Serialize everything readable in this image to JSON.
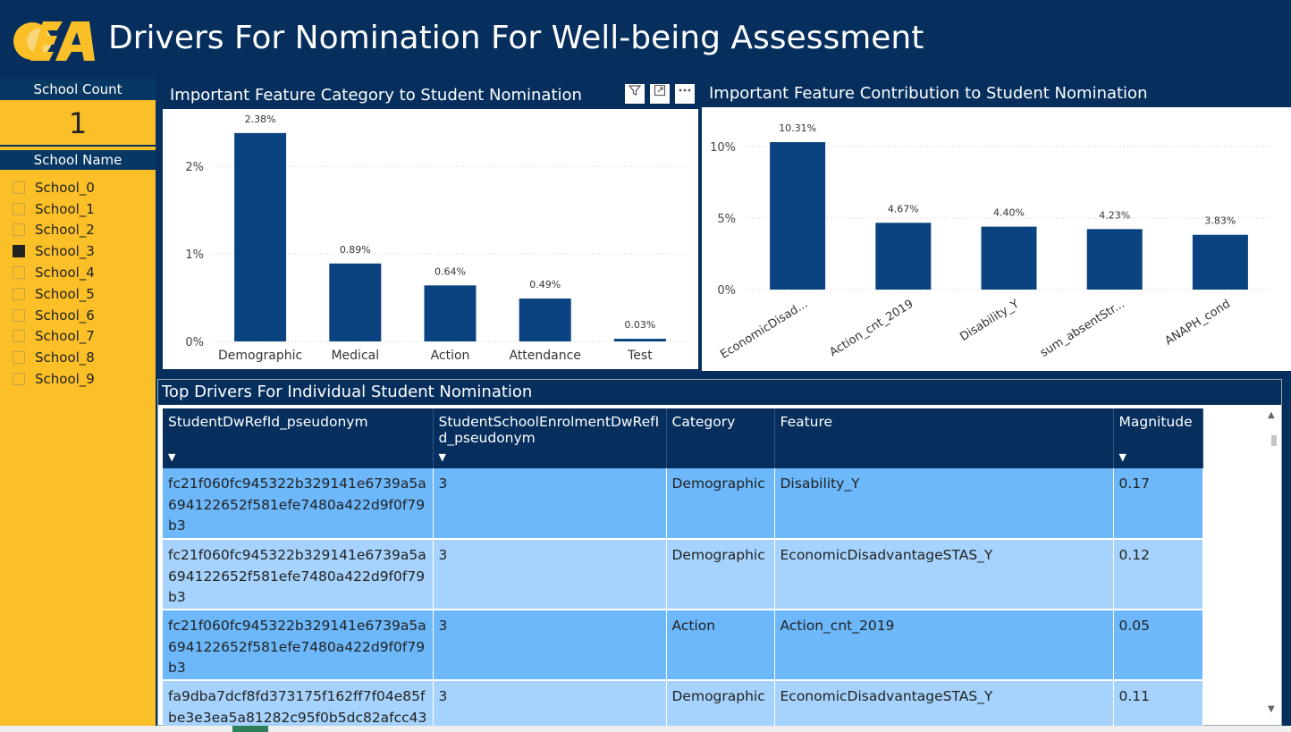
{
  "header": {
    "title": "Drivers For Nomination For Well-being Assessment",
    "logo_alt": "CEA logo",
    "colors": {
      "background": "#062f5e",
      "logo": "#fbbf28"
    }
  },
  "slicer": {
    "school_count_label": "School Count",
    "school_count_value": "1",
    "school_name_label": "School Name",
    "schools": [
      {
        "name": "School_0",
        "selected": false
      },
      {
        "name": "School_1",
        "selected": false
      },
      {
        "name": "School_2",
        "selected": false
      },
      {
        "name": "School_3",
        "selected": true
      },
      {
        "name": "School_4",
        "selected": false
      },
      {
        "name": "School_5",
        "selected": false
      },
      {
        "name": "School_6",
        "selected": false
      },
      {
        "name": "School_7",
        "selected": false
      },
      {
        "name": "School_8",
        "selected": false
      },
      {
        "name": "School_9",
        "selected": false
      }
    ]
  },
  "visual_icons": [
    "filter-icon",
    "focus-mode-icon",
    "more-options-icon"
  ],
  "chart_data": [
    {
      "type": "bar",
      "title": "Important Feature Category to Student Nomination",
      "categories": [
        "Demographic",
        "Medical",
        "Action",
        "Attendance",
        "Test"
      ],
      "values": [
        2.38,
        0.89,
        0.64,
        0.49,
        0.03
      ],
      "data_labels": [
        "2.38%",
        "0.89%",
        "0.64%",
        "0.49%",
        "0.03%"
      ],
      "yticks": [
        "0%",
        "1%",
        "2%"
      ],
      "ylim": [
        0,
        2.45
      ],
      "grid": true,
      "bar_color": "#0b4380"
    },
    {
      "type": "bar",
      "title": "Important Feature Contribution to Student Nomination",
      "categories": [
        "EconomicDisad...",
        "Action_cnt_2019",
        "Disability_Y",
        "sum_absentStr...",
        "ANAPH_cond"
      ],
      "values": [
        10.31,
        4.67,
        4.4,
        4.23,
        3.83
      ],
      "data_labels": [
        "10.31%",
        "4.67%",
        "4.40%",
        "4.23%",
        "3.83%"
      ],
      "yticks": [
        "0%",
        "5%",
        "10%"
      ],
      "ylim": [
        0,
        11.5
      ],
      "grid": true,
      "bar_color": "#0b4380"
    }
  ],
  "table": {
    "title": "Top Drivers For Individual Student Nomination",
    "columns": [
      "StudentDwRefId_pseudonym",
      "StudentSchoolEnrolmentDwRefId_pseudonym",
      "Category",
      "Feature",
      "Magnitude"
    ],
    "rows": [
      [
        "fc21f060fc945322b329141e6739a5a694122652f581efe7480a422d9f0f79b3",
        "3",
        "Demographic",
        "Disability_Y",
        "0.17"
      ],
      [
        "fc21f060fc945322b329141e6739a5a694122652f581efe7480a422d9f0f79b3",
        "3",
        "Demographic",
        "EconomicDisadvantageSTAS_Y",
        "0.12"
      ],
      [
        "fc21f060fc945322b329141e6739a5a694122652f581efe7480a422d9f0f79b3",
        "3",
        "Action",
        "Action_cnt_2019",
        "0.05"
      ],
      [
        "fa9dba7dcf8fd373175f162ff7f04e85fbe3e3ea5a81282c95f0b5dc82afcc43",
        "3",
        "Demographic",
        "EconomicDisadvantageSTAS_Y",
        "0.11"
      ]
    ]
  }
}
